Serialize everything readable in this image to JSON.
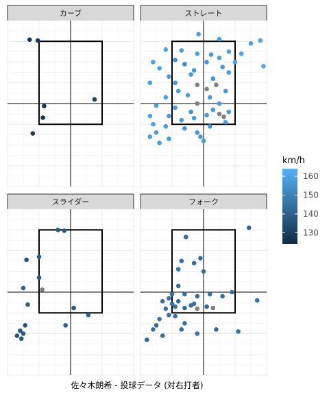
{
  "chart_data": {
    "type": "scatter",
    "title": "",
    "caption": "佐々木朗希 - 投球データ (対右打者)",
    "xlabel": "",
    "ylabel": "",
    "xlim": [
      -1.0,
      1.0
    ],
    "ylim": [
      0.0,
      4.0
    ],
    "grid": true,
    "strike_zone": {
      "x": [
        -0.5,
        0.5
      ],
      "y": [
        1.5,
        3.5
      ]
    },
    "legend": {
      "title": "km/h",
      "position": "right",
      "min": 124,
      "max": 164,
      "ticks": [
        130,
        140,
        150,
        160
      ],
      "colors": {
        "low": "#132b43",
        "high": "#56b1f7"
      },
      "na_color": "#808080"
    },
    "facets": [
      {
        "name": "カーブ",
        "points": [
          {
            "x": -0.65,
            "y": 3.54,
            "v": 127
          },
          {
            "x": -0.52,
            "y": 3.52,
            "v": 128
          },
          {
            "x": 0.38,
            "y": 2.1,
            "v": 131
          },
          {
            "x": -0.42,
            "y": 1.94,
            "v": 128
          },
          {
            "x": -0.44,
            "y": 1.66,
            "v": 128
          },
          {
            "x": -0.6,
            "y": 1.28,
            "v": 129
          }
        ]
      },
      {
        "name": "ストレート",
        "points": [
          {
            "x": -0.08,
            "y": 3.67,
            "v": 158
          },
          {
            "x": 0.25,
            "y": 3.55,
            "v": 159
          },
          {
            "x": 0.9,
            "y": 3.52,
            "v": 160
          },
          {
            "x": 0.75,
            "y": 3.45,
            "v": 159
          },
          {
            "x": -0.6,
            "y": 3.3,
            "v": 160
          },
          {
            "x": -0.35,
            "y": 3.28,
            "v": 157
          },
          {
            "x": -0.1,
            "y": 3.2,
            "v": 158
          },
          {
            "x": 0.12,
            "y": 3.18,
            "v": 157
          },
          {
            "x": 0.4,
            "y": 3.25,
            "v": 159
          },
          {
            "x": 0.6,
            "y": 3.2,
            "v": 160
          },
          {
            "x": -0.8,
            "y": 3.0,
            "v": 158
          },
          {
            "x": -0.45,
            "y": 3.05,
            "v": 155
          },
          {
            "x": 0.05,
            "y": 3.0,
            "v": 156
          },
          {
            "x": 0.25,
            "y": 3.1,
            "v": 158
          },
          {
            "x": 0.5,
            "y": 3.0,
            "v": 159
          },
          {
            "x": -0.7,
            "y": 2.85,
            "v": 159
          },
          {
            "x": -0.3,
            "y": 2.95,
            "v": 152
          },
          {
            "x": -0.15,
            "y": 2.8,
            "v": 157
          },
          {
            "x": 0.3,
            "y": 2.88,
            "v": 157
          },
          {
            "x": 0.95,
            "y": 2.9,
            "v": 161
          },
          {
            "x": -0.55,
            "y": 2.65,
            "v": 158
          },
          {
            "x": -0.2,
            "y": 2.7,
            "v": 157
          },
          {
            "x": 0.15,
            "y": 2.6,
            "v": 154
          },
          {
            "x": 0.4,
            "y": 2.75,
            "v": 158
          },
          {
            "x": -0.85,
            "y": 2.5,
            "v": 159
          },
          {
            "x": -0.45,
            "y": 2.5,
            "v": 156
          },
          {
            "x": -0.1,
            "y": 2.45,
            "v": null
          },
          {
            "x": 0.2,
            "y": 2.45,
            "v": null
          },
          {
            "x": 0.05,
            "y": 2.35,
            "v": null
          },
          {
            "x": -0.4,
            "y": 2.3,
            "v": 158
          },
          {
            "x": 0.35,
            "y": 2.3,
            "v": 156
          },
          {
            "x": -0.6,
            "y": 2.15,
            "v": 159
          },
          {
            "x": -0.25,
            "y": 2.2,
            "v": 157
          },
          {
            "x": 0.1,
            "y": 2.15,
            "v": 158
          },
          {
            "x": -0.1,
            "y": 2.0,
            "v": null
          },
          {
            "x": 0.25,
            "y": 2.0,
            "v": 157
          },
          {
            "x": -0.75,
            "y": 1.95,
            "v": 158
          },
          {
            "x": -0.45,
            "y": 1.9,
            "v": 157
          },
          {
            "x": -0.2,
            "y": 1.8,
            "v": 156
          },
          {
            "x": 0.15,
            "y": 1.85,
            "v": 157
          },
          {
            "x": 0.4,
            "y": 1.8,
            "v": 158
          },
          {
            "x": -0.85,
            "y": 1.7,
            "v": 160
          },
          {
            "x": -0.55,
            "y": 1.7,
            "v": 158
          },
          {
            "x": -0.15,
            "y": 1.65,
            "v": 157
          },
          {
            "x": 0.05,
            "y": 1.72,
            "v": 157
          },
          {
            "x": 0.25,
            "y": 1.75,
            "v": null
          },
          {
            "x": 0.32,
            "y": 1.68,
            "v": null
          },
          {
            "x": -0.35,
            "y": 1.6,
            "v": 157
          },
          {
            "x": -0.8,
            "y": 1.5,
            "v": 159
          },
          {
            "x": -0.6,
            "y": 1.45,
            "v": 158
          },
          {
            "x": -0.3,
            "y": 1.4,
            "v": 156
          },
          {
            "x": 0.1,
            "y": 1.45,
            "v": 157
          },
          {
            "x": -0.75,
            "y": 1.3,
            "v": 157
          },
          {
            "x": -0.1,
            "y": 1.3,
            "v": 156
          },
          {
            "x": 0.35,
            "y": 1.55,
            "v": 158
          },
          {
            "x": -0.85,
            "y": 1.2,
            "v": 158
          },
          {
            "x": -0.55,
            "y": 1.15,
            "v": 157
          },
          {
            "x": -0.05,
            "y": 1.2,
            "v": 156
          },
          {
            "x": -0.7,
            "y": 1.05,
            "v": 158
          },
          {
            "x": 0.0,
            "y": 1.1,
            "v": 157
          }
        ]
      },
      {
        "name": "スライダー",
        "points": [
          {
            "x": -0.2,
            "y": 3.5,
            "v": 138
          },
          {
            "x": -0.1,
            "y": 3.48,
            "v": 139
          },
          {
            "x": -0.7,
            "y": 2.78,
            "v": 136
          },
          {
            "x": -0.5,
            "y": 2.85,
            "v": 138
          },
          {
            "x": -0.5,
            "y": 2.35,
            "v": 137
          },
          {
            "x": -0.75,
            "y": 2.1,
            "v": 140
          },
          {
            "x": -0.45,
            "y": 2.06,
            "v": null
          },
          {
            "x": -0.68,
            "y": 1.7,
            "v": 139
          },
          {
            "x": 0.05,
            "y": 1.62,
            "v": 137
          },
          {
            "x": 0.28,
            "y": 1.45,
            "v": 141
          },
          {
            "x": -0.72,
            "y": 1.2,
            "v": 136
          },
          {
            "x": -0.8,
            "y": 1.07,
            "v": 137
          },
          {
            "x": -0.75,
            "y": 1.0,
            "v": 138
          },
          {
            "x": -0.85,
            "y": 0.95,
            "v": 136
          },
          {
            "x": -0.78,
            "y": 0.88,
            "v": 137
          },
          {
            "x": -0.08,
            "y": 1.2,
            "v": 139
          }
        ]
      },
      {
        "name": "フォーク",
        "points": [
          {
            "x": 0.72,
            "y": 3.55,
            "v": 141
          },
          {
            "x": -0.28,
            "y": 3.33,
            "v": 144
          },
          {
            "x": -0.35,
            "y": 2.75,
            "v": 145
          },
          {
            "x": -0.05,
            "y": 2.82,
            "v": 144
          },
          {
            "x": -0.15,
            "y": 2.7,
            "v": 143
          },
          {
            "x": -0.4,
            "y": 2.55,
            "v": 146
          },
          {
            "x": 0.0,
            "y": 2.5,
            "v": 144
          },
          {
            "x": -0.4,
            "y": 2.15,
            "v": 143
          },
          {
            "x": 0.45,
            "y": 2.0,
            "v": 145
          },
          {
            "x": -0.5,
            "y": 1.95,
            "v": 144
          },
          {
            "x": -0.3,
            "y": 1.95,
            "v": 146
          },
          {
            "x": 0.1,
            "y": 1.95,
            "v": 145
          },
          {
            "x": -0.1,
            "y": 1.9,
            "v": 143
          },
          {
            "x": 0.3,
            "y": 1.9,
            "v": 144
          },
          {
            "x": -0.55,
            "y": 1.85,
            "v": 145
          },
          {
            "x": -0.65,
            "y": 1.78,
            "v": 144
          },
          {
            "x": -0.4,
            "y": 1.78,
            "v": 143
          },
          {
            "x": -0.15,
            "y": 1.72,
            "v": 146
          },
          {
            "x": 0.85,
            "y": 1.8,
            "v": 145
          },
          {
            "x": -0.5,
            "y": 1.72,
            "v": 144
          },
          {
            "x": -0.45,
            "y": 1.65,
            "v": 143
          },
          {
            "x": -0.2,
            "y": 1.68,
            "v": 145
          },
          {
            "x": 0.05,
            "y": 1.65,
            "v": 144
          },
          {
            "x": -0.6,
            "y": 1.6,
            "v": 146
          },
          {
            "x": -0.3,
            "y": 1.62,
            "v": 143
          },
          {
            "x": -0.1,
            "y": 1.6,
            "v": null
          },
          {
            "x": 0.15,
            "y": 1.62,
            "v": null
          },
          {
            "x": -0.55,
            "y": 1.45,
            "v": 144
          },
          {
            "x": -0.45,
            "y": 1.42,
            "v": 145
          },
          {
            "x": -0.7,
            "y": 1.35,
            "v": 146
          },
          {
            "x": -0.8,
            "y": 1.1,
            "v": 144
          },
          {
            "x": -0.75,
            "y": 1.2,
            "v": 143
          },
          {
            "x": -0.3,
            "y": 1.25,
            "v": 145
          },
          {
            "x": -0.35,
            "y": 1.1,
            "v": 144
          },
          {
            "x": -0.1,
            "y": 1.0,
            "v": 146
          },
          {
            "x": 0.2,
            "y": 1.1,
            "v": 144
          },
          {
            "x": 0.55,
            "y": 1.05,
            "v": 145
          },
          {
            "x": -0.9,
            "y": 0.85,
            "v": 143
          },
          {
            "x": -0.65,
            "y": 0.95,
            "v": 144
          }
        ]
      }
    ]
  }
}
